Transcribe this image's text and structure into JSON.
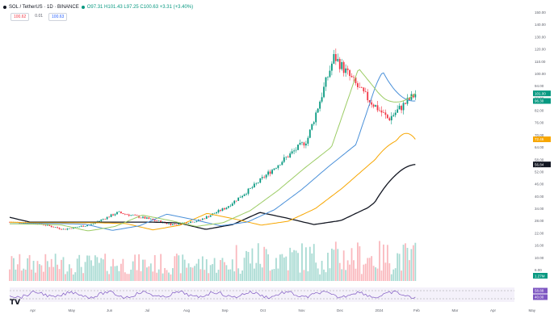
{
  "header": {
    "symbol": "SOL / TetherUS · 1D · BINANCE",
    "ohlc": "O97.31 H101.43 L97.25 C100.63 +3.31 (+3.40%)",
    "sell_price": "100.62",
    "spread": "0.01",
    "buy_price": "100.63",
    "up_color": "#089981",
    "down_color": "#f23645"
  },
  "chart_data": {
    "type": "candlestick",
    "x_axis_labels": [
      "Apr",
      "May",
      "Jun",
      "Jul",
      "Aug",
      "Sep",
      "Oct",
      "Nov",
      "Dec",
      "2024",
      "Feb",
      "Mar",
      "Apr",
      "May"
    ],
    "y_axis_labels": [
      "150.00",
      "140.00",
      "130.00",
      "120.00",
      "110.00",
      "100.00",
      "94.00",
      "88.00",
      "82.00",
      "76.00",
      "70.00",
      "64.00",
      "58.00",
      "52.00",
      "46.00",
      "40.00",
      "34.00",
      "28.00",
      "22.00",
      "16.00",
      "10.00",
      "6.00"
    ],
    "price_tags": [
      {
        "label": "101.00",
        "color": "#089981"
      },
      {
        "label": "96.30",
        "color": "#089981"
      },
      {
        "label": "72.46",
        "color": "#f7a600"
      },
      {
        "label": "56.84",
        "color": "#131722"
      }
    ],
    "close_path": [
      {
        "t": "Apr",
        "v": 21.0
      },
      {
        "t": "May",
        "v": 20.5
      },
      {
        "t": "Jun",
        "v": 16.5
      },
      {
        "t": "Jul",
        "v": 19.5
      },
      {
        "t": "mid-Jul",
        "v": 27.0
      },
      {
        "t": "Aug",
        "v": 23.5
      },
      {
        "t": "Sep",
        "v": 19.5
      },
      {
        "t": "Oct",
        "v": 22.0
      },
      {
        "t": "mid-Oct",
        "v": 30.0
      },
      {
        "t": "Nov",
        "v": 43.0
      },
      {
        "t": "mid-Nov",
        "v": 58.0
      },
      {
        "t": "Dec",
        "v": 72.0
      },
      {
        "t": "late-Dec",
        "v": 124.0
      },
      {
        "t": "2024",
        "v": 102.0
      },
      {
        "t": "mid-Jan",
        "v": 85.0
      },
      {
        "t": "Feb",
        "v": 100.63
      }
    ],
    "moving_averages": [
      {
        "color": "#131722",
        "start": 24.0,
        "end": 56.84
      },
      {
        "color": "#f7a600",
        "start": 21.0,
        "end": 72.46
      },
      {
        "color": "#4a90d9",
        "start": 20.0,
        "end": 96.3
      },
      {
        "color": "#9ccc65",
        "start": 20.0,
        "end": 101.0
      }
    ],
    "volume_tags": [
      "1.27M"
    ],
    "rsi_tags": [
      "58.88",
      "40.00"
    ],
    "grid": false,
    "ylim": [
      6,
      150
    ]
  }
}
